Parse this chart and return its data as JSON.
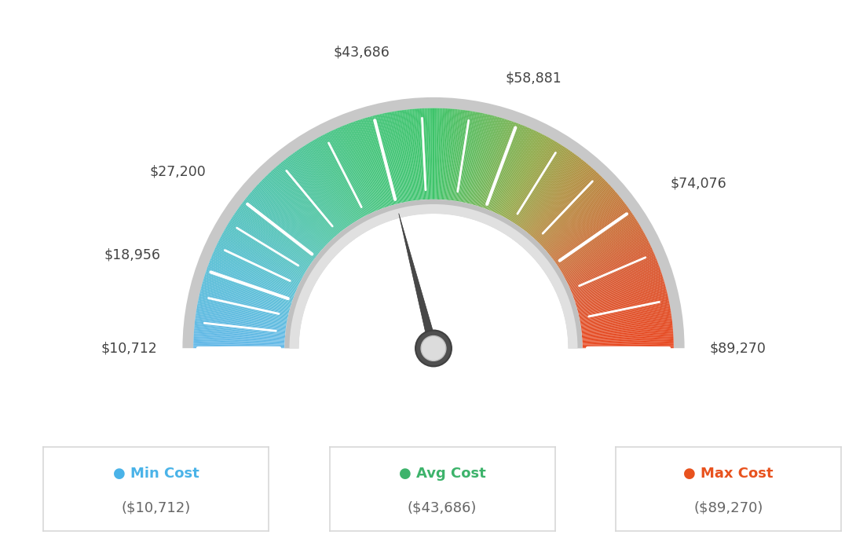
{
  "min_val": 10712,
  "max_val": 89270,
  "avg_val": 43686,
  "labels": [
    "$10,712",
    "$18,956",
    "$27,200",
    "$43,686",
    "$58,881",
    "$74,076",
    "$89,270"
  ],
  "label_values": [
    10712,
    18956,
    27200,
    43686,
    58881,
    74076,
    89270
  ],
  "legend_min_color": "#4ab3e8",
  "legend_avg_color": "#3db36b",
  "legend_max_color": "#e8521e",
  "background_color": "#ffffff",
  "needle_value": 43686,
  "colors_gauge": [
    [
      0.0,
      "#62b8e8"
    ],
    [
      0.12,
      "#58bfd4"
    ],
    [
      0.25,
      "#4ec4a8"
    ],
    [
      0.38,
      "#45c47e"
    ],
    [
      0.5,
      "#3ec46a"
    ],
    [
      0.58,
      "#6ab85a"
    ],
    [
      0.65,
      "#8faa48"
    ],
    [
      0.72,
      "#b09040"
    ],
    [
      0.8,
      "#c87238"
    ],
    [
      0.88,
      "#d85830"
    ],
    [
      1.0,
      "#e84820"
    ]
  ],
  "outer_border_color": "#c8c8c8",
  "inner_ring_outer_color": "#d0d0d0",
  "inner_ring_inner_color": "#f0f0f0",
  "needle_color": "#4a4a4a",
  "needle_base_outer": "#555555",
  "needle_base_inner": "#e0e0e0"
}
